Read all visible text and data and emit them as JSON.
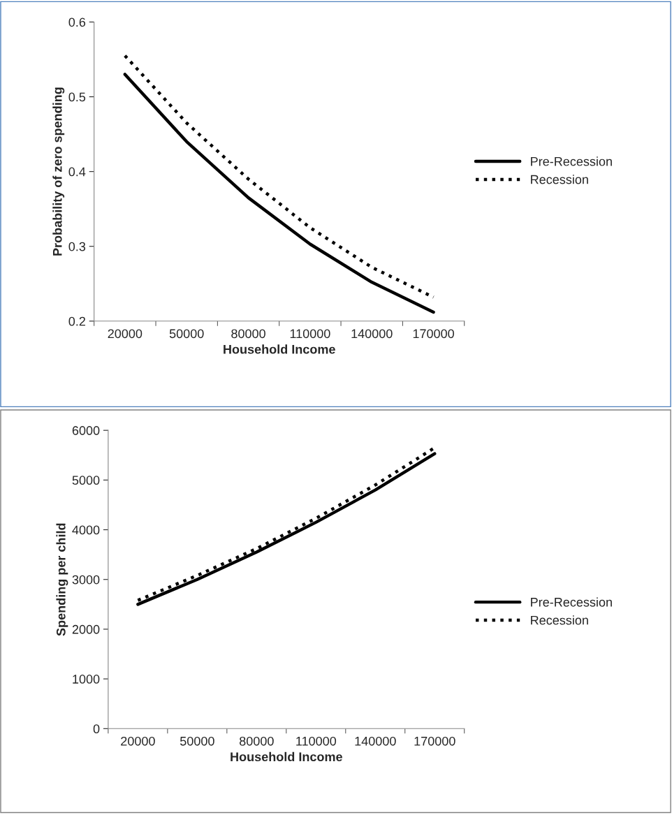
{
  "chart_data": [
    {
      "type": "line",
      "xlabel": "Household Income",
      "ylabel": "Probability of zero spending",
      "categories": [
        "20000",
        "50000",
        "80000",
        "110000",
        "140000",
        "170000"
      ],
      "series": [
        {
          "name": "Pre-Recession",
          "color": "#000000",
          "line_style": "solid",
          "values": [
            0.53,
            0.44,
            0.365,
            0.303,
            0.252,
            0.212
          ]
        },
        {
          "name": "Recession",
          "color": "#000000",
          "line_style": "dotted",
          "values": [
            0.555,
            0.465,
            0.39,
            0.325,
            0.272,
            0.232
          ]
        }
      ],
      "ylim": [
        0.2,
        0.6
      ],
      "yticks": [
        {
          "value": 0.2,
          "label": "0.2"
        },
        {
          "value": 0.3,
          "label": "0.3"
        },
        {
          "value": 0.4,
          "label": "0.4"
        },
        {
          "value": 0.5,
          "label": "0.5"
        },
        {
          "value": 0.6,
          "label": "0.6"
        }
      ],
      "grid": false,
      "legend": "right",
      "marker": "none"
    },
    {
      "type": "line",
      "xlabel": "Household Income",
      "ylabel": "Spending per child",
      "categories": [
        "20000",
        "50000",
        "80000",
        "110000",
        "140000",
        "170000"
      ],
      "series": [
        {
          "name": "Pre-Recession",
          "color": "#000000",
          "line_style": "solid",
          "values": [
            2500,
            3000,
            3550,
            4150,
            4800,
            5530
          ]
        },
        {
          "name": "Recession",
          "color": "#000000",
          "line_style": "dotted",
          "values": [
            2580,
            3080,
            3620,
            4230,
            4900,
            5650
          ]
        }
      ],
      "ylim": [
        0,
        6000
      ],
      "yticks": [
        0,
        1000,
        2000,
        3000,
        4000,
        5000,
        6000
      ],
      "grid": false,
      "legend": "right",
      "marker": "none"
    }
  ]
}
